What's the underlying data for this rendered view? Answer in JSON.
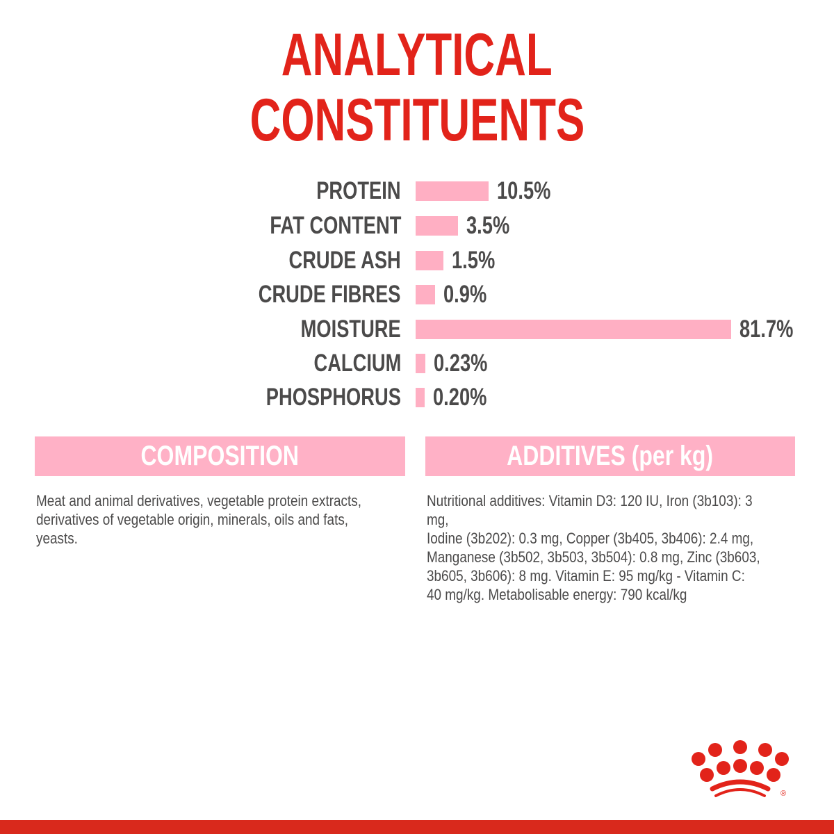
{
  "title_lines": [
    "ANALYTICAL",
    "CONSTITUENTS"
  ],
  "colors": {
    "title": "#e2231a",
    "bar": "#ffafc3",
    "header": "#ffb1c6",
    "text": "#4b4a4a",
    "footer": "#d9291c"
  },
  "chart_data": {
    "type": "bar",
    "orientation": "horizontal",
    "title": "ANALYTICAL CONSTITUENTS",
    "categories": [
      "PROTEIN",
      "FAT CONTENT",
      "CRUDE ASH",
      "CRUDE FIBRES",
      "MOISTURE",
      "CALCIUM",
      "PHOSPHORUS"
    ],
    "values": [
      10.5,
      3.5,
      1.5,
      0.9,
      81.7,
      0.23,
      0.2
    ],
    "value_labels": [
      "10.5%",
      "3.5%",
      "1.5%",
      "0.9%",
      "81.7%",
      "0.23%",
      "0.20%"
    ],
    "unit": "%",
    "grid": false
  },
  "composition": {
    "heading": "COMPOSITION",
    "lines": [
      "Meat and animal derivatives, vegetable protein extracts,",
      "derivatives of vegetable origin, minerals, oils and fats,",
      "yeasts."
    ]
  },
  "additives": {
    "heading": "ADDITIVES (per kg)",
    "lines": [
      "Nutritional additives: Vitamin D3: 120 IU, Iron (3b103): 3 mg,",
      "Iodine (3b202): 0.3 mg, Copper (3b405, 3b406): 2.4 mg,",
      "Manganese (3b502, 3b503, 3b504): 0.8 mg, Zinc (3b603,",
      "3b605, 3b606): 8 mg. Vitamin E: 95 mg/kg - Vitamin C:",
      "40 mg/kg. Metabolisable energy: 790 kcal/kg"
    ]
  },
  "logo": {
    "icon": "royal-canin-crown-logo",
    "mark": "®"
  }
}
